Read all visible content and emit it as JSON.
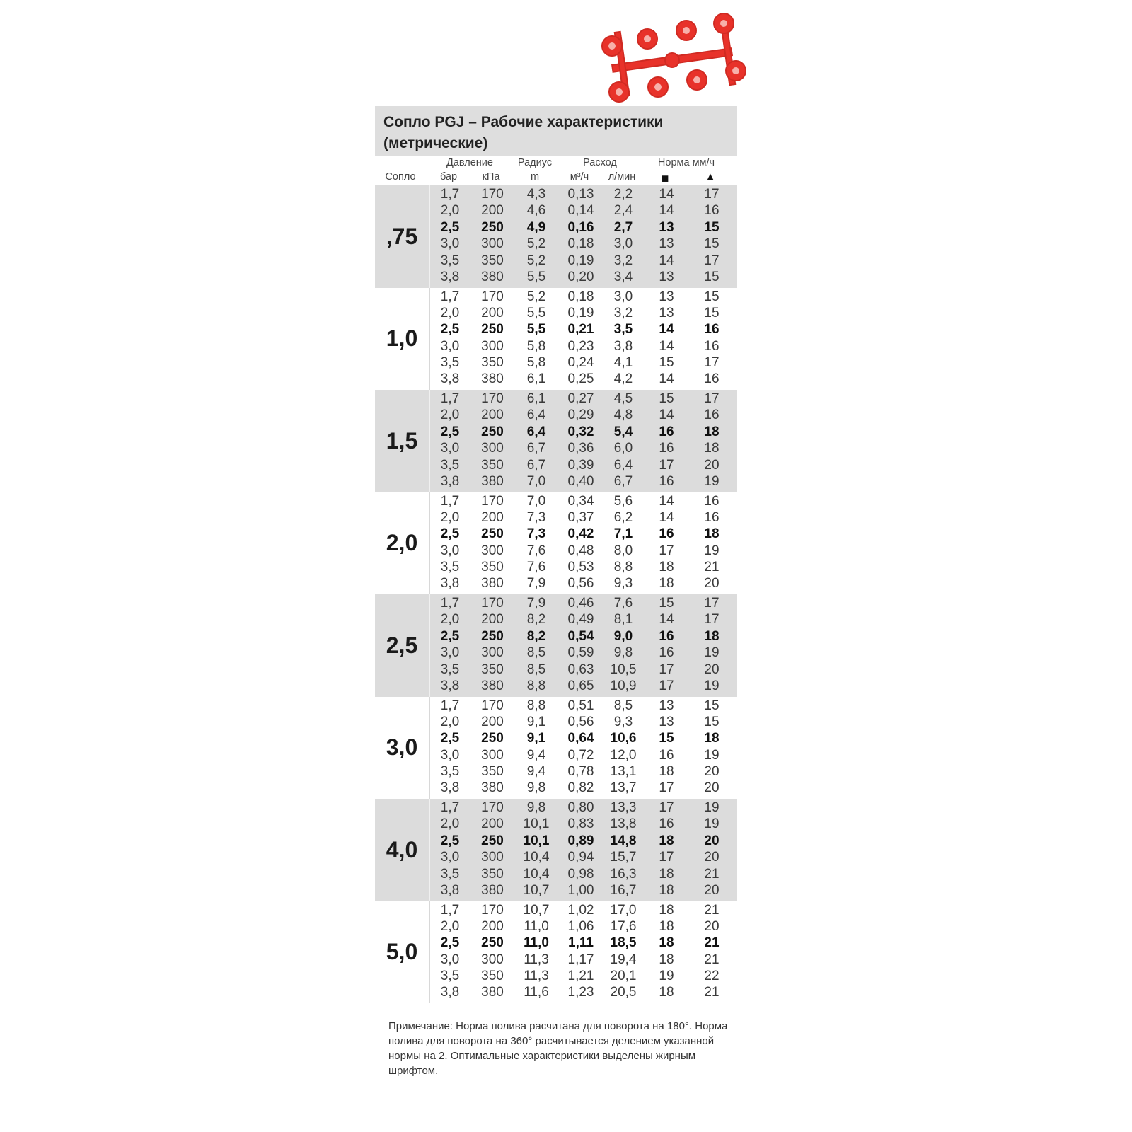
{
  "title": "Сопло PGJ – Рабочие характеристики (метрические)",
  "headers": {
    "nozzle": "Сопло",
    "pressure": "Давление",
    "bar": "бар",
    "kpa": "кПа",
    "radius": "Радиус",
    "m": "m",
    "flow": "Расход",
    "m3h": "м³/ч",
    "lmin": "л/мин",
    "rate": "Норма мм/ч",
    "square_icon": "square-spacing",
    "triangle_icon": "triangle-spacing"
  },
  "bold_row_index": 2,
  "groups": [
    {
      "nozzle": ",75",
      "rows": [
        [
          "1,7",
          "170",
          "4,3",
          "0,13",
          "2,2",
          "14",
          "17"
        ],
        [
          "2,0",
          "200",
          "4,6",
          "0,14",
          "2,4",
          "14",
          "16"
        ],
        [
          "2,5",
          "250",
          "4,9",
          "0,16",
          "2,7",
          "13",
          "15"
        ],
        [
          "3,0",
          "300",
          "5,2",
          "0,18",
          "3,0",
          "13",
          "15"
        ],
        [
          "3,5",
          "350",
          "5,2",
          "0,19",
          "3,2",
          "14",
          "17"
        ],
        [
          "3,8",
          "380",
          "5,5",
          "0,20",
          "3,4",
          "13",
          "15"
        ]
      ]
    },
    {
      "nozzle": "1,0",
      "rows": [
        [
          "1,7",
          "170",
          "5,2",
          "0,18",
          "3,0",
          "13",
          "15"
        ],
        [
          "2,0",
          "200",
          "5,5",
          "0,19",
          "3,2",
          "13",
          "15"
        ],
        [
          "2,5",
          "250",
          "5,5",
          "0,21",
          "3,5",
          "14",
          "16"
        ],
        [
          "3,0",
          "300",
          "5,8",
          "0,23",
          "3,8",
          "14",
          "16"
        ],
        [
          "3,5",
          "350",
          "5,8",
          "0,24",
          "4,1",
          "15",
          "17"
        ],
        [
          "3,8",
          "380",
          "6,1",
          "0,25",
          "4,2",
          "14",
          "16"
        ]
      ]
    },
    {
      "nozzle": "1,5",
      "rows": [
        [
          "1,7",
          "170",
          "6,1",
          "0,27",
          "4,5",
          "15",
          "17"
        ],
        [
          "2,0",
          "200",
          "6,4",
          "0,29",
          "4,8",
          "14",
          "16"
        ],
        [
          "2,5",
          "250",
          "6,4",
          "0,32",
          "5,4",
          "16",
          "18"
        ],
        [
          "3,0",
          "300",
          "6,7",
          "0,36",
          "6,0",
          "16",
          "18"
        ],
        [
          "3,5",
          "350",
          "6,7",
          "0,39",
          "6,4",
          "17",
          "20"
        ],
        [
          "3,8",
          "380",
          "7,0",
          "0,40",
          "6,7",
          "16",
          "19"
        ]
      ]
    },
    {
      "nozzle": "2,0",
      "rows": [
        [
          "1,7",
          "170",
          "7,0",
          "0,34",
          "5,6",
          "14",
          "16"
        ],
        [
          "2,0",
          "200",
          "7,3",
          "0,37",
          "6,2",
          "14",
          "16"
        ],
        [
          "2,5",
          "250",
          "7,3",
          "0,42",
          "7,1",
          "16",
          "18"
        ],
        [
          "3,0",
          "300",
          "7,6",
          "0,48",
          "8,0",
          "17",
          "19"
        ],
        [
          "3,5",
          "350",
          "7,6",
          "0,53",
          "8,8",
          "18",
          "21"
        ],
        [
          "3,8",
          "380",
          "7,9",
          "0,56",
          "9,3",
          "18",
          "20"
        ]
      ]
    },
    {
      "nozzle": "2,5",
      "rows": [
        [
          "1,7",
          "170",
          "7,9",
          "0,46",
          "7,6",
          "15",
          "17"
        ],
        [
          "2,0",
          "200",
          "8,2",
          "0,49",
          "8,1",
          "14",
          "17"
        ],
        [
          "2,5",
          "250",
          "8,2",
          "0,54",
          "9,0",
          "16",
          "18"
        ],
        [
          "3,0",
          "300",
          "8,5",
          "0,59",
          "9,8",
          "16",
          "19"
        ],
        [
          "3,5",
          "350",
          "8,5",
          "0,63",
          "10,5",
          "17",
          "20"
        ],
        [
          "3,8",
          "380",
          "8,8",
          "0,65",
          "10,9",
          "17",
          "19"
        ]
      ]
    },
    {
      "nozzle": "3,0",
      "rows": [
        [
          "1,7",
          "170",
          "8,8",
          "0,51",
          "8,5",
          "13",
          "15"
        ],
        [
          "2,0",
          "200",
          "9,1",
          "0,56",
          "9,3",
          "13",
          "15"
        ],
        [
          "2,5",
          "250",
          "9,1",
          "0,64",
          "10,6",
          "15",
          "18"
        ],
        [
          "3,0",
          "300",
          "9,4",
          "0,72",
          "12,0",
          "16",
          "19"
        ],
        [
          "3,5",
          "350",
          "9,4",
          "0,78",
          "13,1",
          "18",
          "20"
        ],
        [
          "3,8",
          "380",
          "9,8",
          "0,82",
          "13,7",
          "17",
          "20"
        ]
      ]
    },
    {
      "nozzle": "4,0",
      "rows": [
        [
          "1,7",
          "170",
          "9,8",
          "0,80",
          "13,3",
          "17",
          "19"
        ],
        [
          "2,0",
          "200",
          "10,1",
          "0,83",
          "13,8",
          "16",
          "19"
        ],
        [
          "2,5",
          "250",
          "10,1",
          "0,89",
          "14,8",
          "18",
          "20"
        ],
        [
          "3,0",
          "300",
          "10,4",
          "0,94",
          "15,7",
          "17",
          "20"
        ],
        [
          "3,5",
          "350",
          "10,4",
          "0,98",
          "16,3",
          "18",
          "21"
        ],
        [
          "3,8",
          "380",
          "10,7",
          "1,00",
          "16,7",
          "18",
          "20"
        ]
      ]
    },
    {
      "nozzle": "5,0",
      "rows": [
        [
          "1,7",
          "170",
          "10,7",
          "1,02",
          "17,0",
          "18",
          "21"
        ],
        [
          "2,0",
          "200",
          "11,0",
          "1,06",
          "17,6",
          "18",
          "20"
        ],
        [
          "2,5",
          "250",
          "11,0",
          "1,11",
          "18,5",
          "18",
          "21"
        ],
        [
          "3,0",
          "300",
          "11,3",
          "1,17",
          "19,4",
          "18",
          "21"
        ],
        [
          "3,5",
          "350",
          "11,3",
          "1,21",
          "20,1",
          "19",
          "22"
        ],
        [
          "3,8",
          "380",
          "11,6",
          "1,23",
          "20,5",
          "18",
          "21"
        ]
      ]
    }
  ],
  "note": "Примечание: Норма полива расчитана для поворота на 180°. Норма полива для поворота на 360° расчитывается делением указанной нормы на 2. Оптимальные характеристики выделены жирным шрифтом.",
  "colors": {
    "shade": "#dcdcdc",
    "nozzle_tree": "#e8322a"
  }
}
